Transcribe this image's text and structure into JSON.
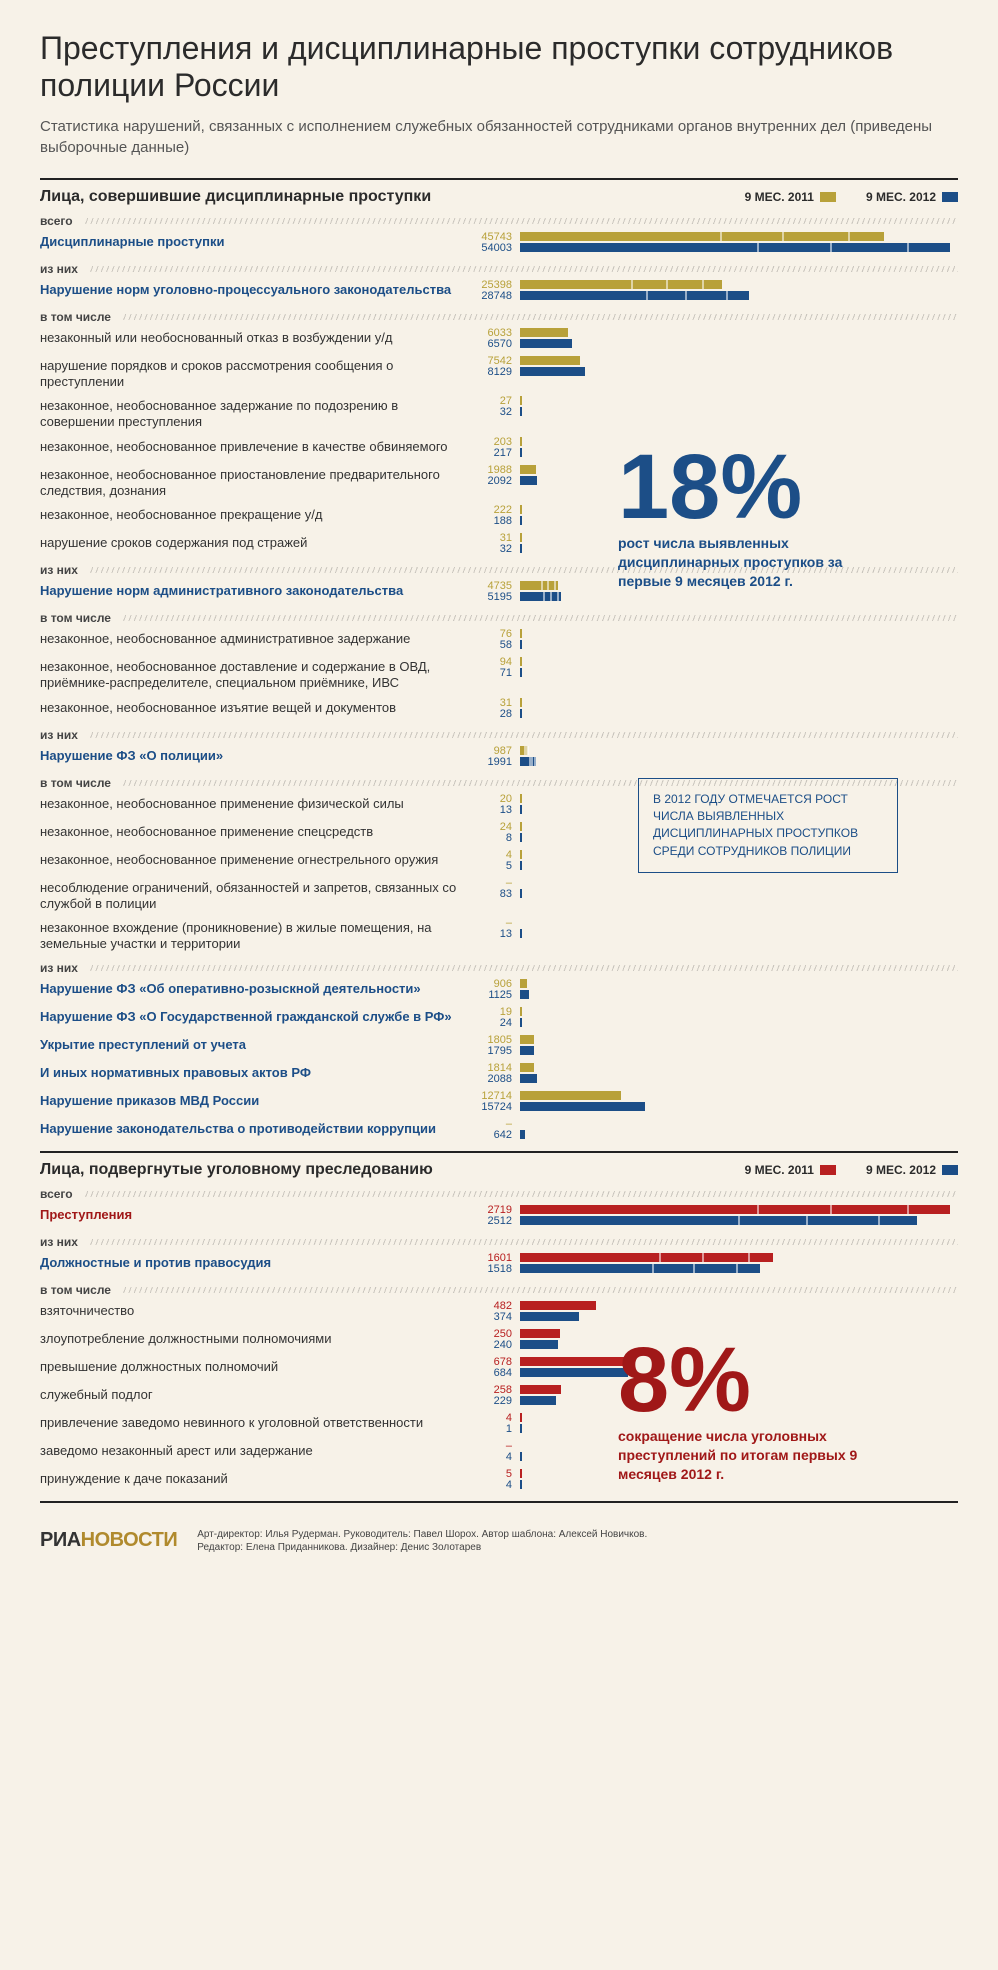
{
  "title": "Преступления и дисциплинарные проступки сотрудников полиции России",
  "subtitle": "Статистика нарушений, связанных с исполнением служебных обязанностей сотрудниками органов внутренних дел (приведены выборочные данные)",
  "colors": {
    "yellow": "#b8a13a",
    "navy": "#1c4e87",
    "red": "#b82020",
    "bg": "#f7f2e8",
    "text": "#333333"
  },
  "section1": {
    "header": "Лица, совершившие дисциплинарные проступки",
    "legend": {
      "y1": "9 МЕС. 2011",
      "y2": "9 МЕС. 2012",
      "c1": "#b8a13a",
      "c2": "#1c4e87"
    },
    "max": 54003,
    "callout_big": {
      "pct": "18%",
      "desc": "рост числа выявленных дисциплинарных проступков за первые 9 месяцев 2012 г."
    },
    "callout_box": "В 2012 ГОДУ ОТМЕЧАЕТСЯ РОСТ ЧИСЛА ВЫЯВЛЕННЫХ ДИСЦИПЛИНАРНЫХ ПРОСТУПКОВ СРЕДИ СОТРУДНИКОВ ПОЛИЦИИ",
    "div_vsego": "всего",
    "div_iznih": "из них",
    "div_vtom": "в том числе",
    "groups": [
      {
        "label": "Дисциплинарные проступки",
        "v1": 45743,
        "v2": 54003,
        "hl": true,
        "segmented": true
      },
      {
        "divider": "из них"
      },
      {
        "label": "Нарушение норм уголовно-процессуального законодательства",
        "v1": 25398,
        "v2": 28748,
        "hl": true,
        "segmented": true
      },
      {
        "divider": "в том числе"
      },
      {
        "label": "незаконный или необоснованный отказ в возбуждении у/д",
        "v1": 6033,
        "v2": 6570
      },
      {
        "label": "нарушение порядков и сроков рассмотрения сообщения о преступлении",
        "v1": 7542,
        "v2": 8129
      },
      {
        "label": "незаконное, необоснованное задержание по подозрению в совершении преступления",
        "v1": 27,
        "v2": 32
      },
      {
        "label": "незаконное, необоснованное привлечение в качестве обвиняемого",
        "v1": 203,
        "v2": 217
      },
      {
        "label": "незаконное, необоснованное приостановление предварительного следствия, дознания",
        "v1": 1988,
        "v2": 2092
      },
      {
        "label": "незаконное, необоснованное прекращение у/д",
        "v1": 222,
        "v2": 188
      },
      {
        "label": "нарушение сроков содержания под стражей",
        "v1": 31,
        "v2": 32
      },
      {
        "divider": "из них"
      },
      {
        "label": "Нарушение норм административного законодательства",
        "v1": 4735,
        "v2": 5195,
        "hl": true,
        "segmented": true
      },
      {
        "divider": "в том числе"
      },
      {
        "label": "незаконное, необоснованное административное задержание",
        "v1": 76,
        "v2": 58
      },
      {
        "label": "незаконное, необоснованное доставление и содержание в ОВД, приёмнике-распределителе, специальном приёмнике, ИВС",
        "v1": 94,
        "v2": 71
      },
      {
        "label": "незаконное, необоснованное изъятие вещей и документов",
        "v1": 31,
        "v2": 28
      },
      {
        "divider": "из них"
      },
      {
        "label": "Нарушение ФЗ «О полиции»",
        "v1": 987,
        "v2": 1991,
        "hl": true,
        "segmented": true
      },
      {
        "divider": "в том числе"
      },
      {
        "label": "незаконное, необоснованное применение физической силы",
        "v1": 20,
        "v2": 13
      },
      {
        "label": "незаконное, необоснованное применение спецсредств",
        "v1": 24,
        "v2": 8
      },
      {
        "label": "незаконное, необоснованное применение огнестрельного оружия",
        "v1": 4,
        "v2": 5
      },
      {
        "label": "несоблюдение ограничений, обязанностей и запретов, связанных со службой в полиции",
        "v1": null,
        "v2": 83
      },
      {
        "label": "незаконное вхождение (проникновение) в жилые помещения, на земельные участки и территории",
        "v1": null,
        "v2": 13
      },
      {
        "divider": "из них"
      },
      {
        "label": "Нарушение ФЗ «Об оперативно-розыскной деятельности»",
        "v1": 906,
        "v2": 1125,
        "hl": true
      },
      {
        "label": "Нарушение ФЗ «О Государственной гражданской службе в РФ»",
        "v1": 19,
        "v2": 24,
        "hl": true
      },
      {
        "label": "Укрытие преступлений от учета",
        "v1": 1805,
        "v2": 1795,
        "hl": true
      },
      {
        "label": "И иных нормативных правовых актов РФ",
        "v1": 1814,
        "v2": 2088,
        "hl": true
      },
      {
        "label": "Нарушение приказов МВД России",
        "v1": 12714,
        "v2": 15724,
        "hl": true
      },
      {
        "label": "Нарушение законодательства о противодействии коррупции",
        "v1": null,
        "v2": 642,
        "hl": true
      }
    ]
  },
  "section2": {
    "header": "Лица, подвергнутые уголовному преследованию",
    "legend": {
      "y1": "9 МЕС. 2011",
      "y2": "9 МЕС. 2012",
      "c1": "#b82020",
      "c2": "#1c4e87"
    },
    "max": 2719,
    "callout_big": {
      "pct": "8%",
      "desc": "сокращение числа уголовных преступлений по итогам первых 9 месяцев 2012 г."
    },
    "groups": [
      {
        "divider": "всего"
      },
      {
        "label": "Преступления",
        "v1": 2719,
        "v2": 2512,
        "hlRed": true,
        "segmented": true
      },
      {
        "divider": "из них"
      },
      {
        "label": "Должностные и против правосудия",
        "v1": 1601,
        "v2": 1518,
        "hl": true,
        "segmented": true
      },
      {
        "divider": "в том числе"
      },
      {
        "label": "взяточничество",
        "v1": 482,
        "v2": 374
      },
      {
        "label": "злоупотребление должностными полномочиями",
        "v1": 250,
        "v2": 240
      },
      {
        "label": "превышение должностных полномочий",
        "v1": 678,
        "v2": 684
      },
      {
        "label": "служебный подлог",
        "v1": 258,
        "v2": 229
      },
      {
        "label": "привлечение заведомо невинного к уголовной ответственности",
        "v1": 4,
        "v2": 1
      },
      {
        "label": "заведомо незаконный арест или задержание",
        "v1": null,
        "v2": 4
      },
      {
        "label": "принуждение к даче показаний",
        "v1": 5,
        "v2": 4
      }
    ]
  },
  "footer": {
    "logo_a": "РИА",
    "logo_b": "НОВОСТИ",
    "credits_l1": "Арт-директор: Илья Рудерман. Руководитель: Павел Шорох. Автор шаблона: Алексей Новичков.",
    "credits_l2": "Редактор: Елена Приданникова. Дизайнер: Денис Золотарев"
  }
}
